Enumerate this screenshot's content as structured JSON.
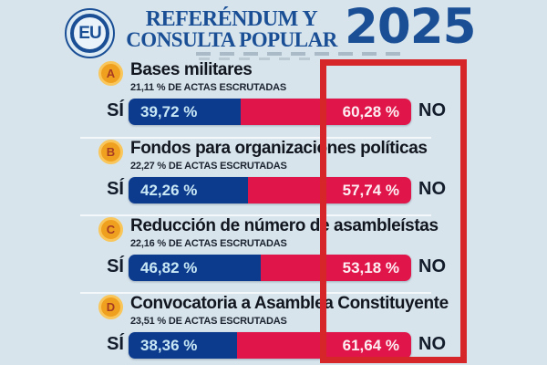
{
  "header": {
    "logo": "EU",
    "title_line1": "REFERÉNDUM Y",
    "title_line2": "CONSULTA POPULAR",
    "year": "2025"
  },
  "labels": {
    "yes": "SÍ",
    "no": "NO"
  },
  "questions": [
    {
      "letter": "A",
      "title": "Bases militares",
      "scrutiny": "21,11 % DE ACTAS ESCRUTADAS",
      "yes_label": "39,72 %",
      "no_label": "60,28 %",
      "yes_value": 39.72,
      "no_value": 60.28
    },
    {
      "letter": "B",
      "title": "Fondos para organizaciones políticas",
      "scrutiny": "22,27 % DE ACTAS ESCRUTADAS",
      "yes_label": "42,26 %",
      "no_label": "57,74 %",
      "yes_value": 42.26,
      "no_value": 57.74
    },
    {
      "letter": "C",
      "title": "Reducción de número de asambleístas",
      "scrutiny": "22,16 % DE ACTAS ESCRUTADAS",
      "yes_label": "46,82 %",
      "no_label": "53,18 %",
      "yes_value": 46.82,
      "no_value": 53.18
    },
    {
      "letter": "D",
      "title": "Convocatoria a Asamblea Constituyente",
      "scrutiny": "23,51 % DE ACTAS ESCRUTADAS",
      "yes_label": "38,36 %",
      "no_label": "61,64 %",
      "yes_value": 38.36,
      "no_value": 61.64
    }
  ],
  "colors": {
    "background": "#d7e4ec",
    "header_blue": "#1a4f96",
    "yes_bar": "#0c3a8d",
    "no_bar": "#e0164a",
    "highlight_box": "#d6262a",
    "badge_fill": "#f0a01f",
    "badge_ring": "#f8c65a",
    "badge_letter": "#a63c22"
  },
  "chart_data": {
    "type": "bar",
    "subtype": "horizontal-stacked-100pct",
    "title": "REFERÉNDUM Y CONSULTA POPULAR 2025",
    "categories": [
      "Bases militares",
      "Fondos para organizaciones políticas",
      "Reducción de número de asambleístas",
      "Convocatoria a Asamblea Constituyente"
    ],
    "series": [
      {
        "name": "SÍ",
        "color": "#0c3a8d",
        "values": [
          39.72,
          42.26,
          46.82,
          38.36
        ]
      },
      {
        "name": "NO",
        "color": "#e0164a",
        "values": [
          60.28,
          57.74,
          53.18,
          61.64
        ]
      }
    ],
    "actas_escrutadas_pct": [
      21.11,
      22.27,
      22.16,
      23.51
    ],
    "xlim": [
      0,
      100
    ],
    "units": "%",
    "legend_position": "bar-ends",
    "annotation": "red box highlighting NO results column"
  }
}
